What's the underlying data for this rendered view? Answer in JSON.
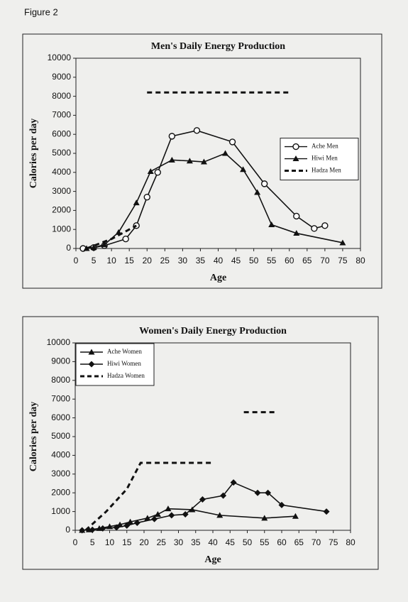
{
  "figure_label": "Figure 2",
  "chart_data": [
    {
      "type": "line",
      "title": "Men's Daily Energy Production",
      "x_label": "Age",
      "y_label": "Calories per day",
      "xlim": [
        0,
        80
      ],
      "xticks": [
        0,
        5,
        10,
        15,
        20,
        25,
        30,
        35,
        40,
        45,
        50,
        55,
        60,
        65,
        70,
        75,
        80
      ],
      "ylim": [
        0,
        10000
      ],
      "yticks": [
        0,
        1000,
        2000,
        3000,
        4000,
        5000,
        6000,
        7000,
        8000,
        9000,
        10000
      ],
      "legend": "center right",
      "series": [
        {
          "name": "Ache Men",
          "color": "#111111",
          "marker": "circle",
          "dashed": false,
          "x": [
            2,
            5,
            8,
            14,
            17,
            20,
            23,
            27,
            34,
            44,
            53,
            62,
            67,
            70
          ],
          "values": [
            0,
            50,
            150,
            500,
            1200,
            2700,
            4000,
            5900,
            6200,
            5600,
            3400,
            1700,
            1050,
            1200
          ]
        },
        {
          "name": "Hiwi Men",
          "color": "#111111",
          "marker": "triangle",
          "dashed": false,
          "x": [
            3,
            5,
            8,
            12,
            17,
            21,
            27,
            32,
            36,
            42,
            47,
            51,
            55,
            62,
            75
          ],
          "values": [
            0,
            50,
            200,
            850,
            2400,
            4050,
            4650,
            4600,
            4550,
            5000,
            4150,
            2950,
            1250,
            800,
            300
          ]
        },
        {
          "name": "Hadza Men",
          "color": "#111111",
          "marker": "none",
          "dashed": true,
          "x": [
            3,
            10,
            17,
            18,
            20,
            60
          ],
          "values": [
            0,
            500,
            1200,
            null,
            8200,
            8200
          ]
        }
      ]
    },
    {
      "type": "line",
      "title": "Women's Daily Energy Production",
      "x_label": "Age",
      "y_label": "Calories per day",
      "xlim": [
        0,
        80
      ],
      "xticks": [
        0,
        5,
        10,
        15,
        20,
        25,
        30,
        35,
        40,
        45,
        50,
        55,
        60,
        65,
        70,
        75,
        80
      ],
      "ylim": [
        0,
        10000
      ],
      "yticks": [
        0,
        1000,
        2000,
        3000,
        4000,
        5000,
        6000,
        7000,
        8000,
        9000,
        10000
      ],
      "legend": "upper left",
      "series": [
        {
          "name": "Ache Women",
          "color": "#111111",
          "marker": "triangle",
          "dashed": false,
          "x": [
            2,
            4,
            7,
            10,
            13,
            16,
            21,
            24,
            27,
            34,
            42,
            55,
            64
          ],
          "values": [
            0,
            30,
            100,
            200,
            300,
            450,
            650,
            850,
            1150,
            1100,
            800,
            650,
            750
          ]
        },
        {
          "name": "Hiwi Women",
          "color": "#111111",
          "marker": "diamond",
          "dashed": false,
          "x": [
            2,
            5,
            8,
            12,
            15,
            18,
            23,
            28,
            32,
            37,
            43,
            46,
            53,
            56,
            60,
            73
          ],
          "values": [
            0,
            30,
            100,
            150,
            250,
            400,
            600,
            800,
            850,
            1650,
            1850,
            2550,
            2000,
            2000,
            1350,
            1000
          ]
        },
        {
          "name": "Hadza Women",
          "color": "#111111",
          "marker": "none",
          "dashed": true,
          "x": [
            3,
            9,
            15,
            19,
            40,
            45,
            49,
            58
          ],
          "values": [
            0,
            1000,
            2200,
            3600,
            3600,
            null,
            6300,
            6300
          ]
        }
      ]
    }
  ]
}
